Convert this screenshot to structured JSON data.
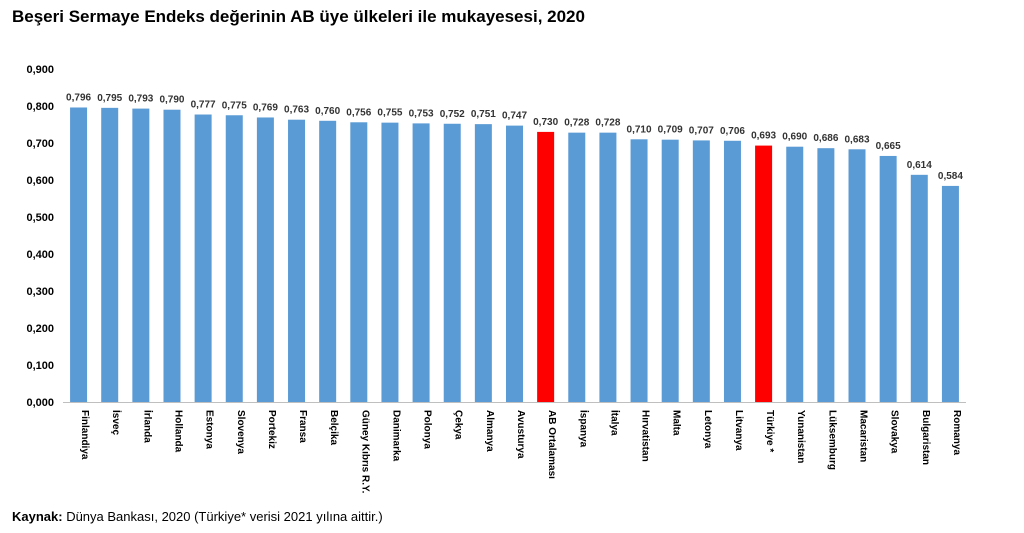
{
  "chart_data": {
    "type": "bar",
    "title": "Beşeri Sermaye Endeks değerinin AB üye ülkeleri ile mukayesesi, 2020",
    "categories": [
      "Finlandiya",
      "İsveç",
      "İrlanda",
      "Hollanda",
      "Estonya",
      "Slovenya",
      "Portekiz",
      "Fransa",
      "Belçika",
      "Güney Kıbrıs R.Y.",
      "Danimarka",
      "Polonya",
      "Çekya",
      "Almanya",
      "Avusturya",
      "AB Ortalaması",
      "İspanya",
      "İtalya",
      "Hırvatistan",
      "Malta",
      "Letonya",
      "Litvanya",
      "Türkiye *",
      "Yunanistan",
      "Lüksemburg",
      "Macaristan",
      "Slovakya",
      "Bulgaristan",
      "Romanya"
    ],
    "values": [
      0.796,
      0.795,
      0.793,
      0.79,
      0.777,
      0.775,
      0.769,
      0.763,
      0.76,
      0.756,
      0.755,
      0.753,
      0.752,
      0.751,
      0.747,
      0.73,
      0.728,
      0.728,
      0.71,
      0.709,
      0.707,
      0.706,
      0.693,
      0.69,
      0.686,
      0.683,
      0.665,
      0.614,
      0.584
    ],
    "value_labels": [
      "0,796",
      "0,795",
      "0,793",
      "0,790",
      "0,777",
      "0,775",
      "0,769",
      "0,763",
      "0,760",
      "0,756",
      "0,755",
      "0,753",
      "0,752",
      "0,751",
      "0,747",
      "0,730",
      "0,728",
      "0,728",
      "0,710",
      "0,709",
      "0,707",
      "0,706",
      "0,693",
      "0,690",
      "0,686",
      "0,683",
      "0,665",
      "0,614",
      "0,584"
    ],
    "ylim": [
      0,
      0.9
    ],
    "yticks": [
      0,
      0.1,
      0.2,
      0.3,
      0.4,
      0.5,
      0.6,
      0.7,
      0.8,
      0.9
    ],
    "ytick_labels": [
      "0,000",
      "0,100",
      "0,200",
      "0,300",
      "0,400",
      "0,500",
      "0,600",
      "0,700",
      "0,800",
      "0,900"
    ],
    "grid": false,
    "colors": {
      "default": "#5B9BD5",
      "highlight": "#FF0000",
      "axis": "#BFBFBF"
    },
    "highlighted_categories": [
      "AB Ortalaması",
      "Türkiye *"
    ]
  },
  "footer": {
    "source_label": "Kaynak:",
    "source_text": " Dünya Bankası, 2020 (Türkiye* verisi 2021 yılına aittir.)"
  }
}
